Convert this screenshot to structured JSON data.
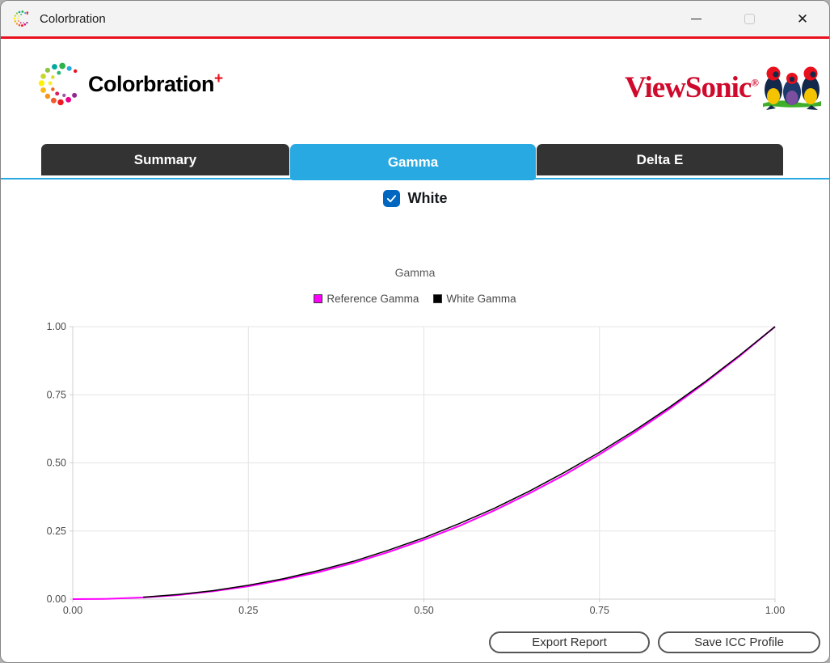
{
  "window": {
    "title": "Colorbration",
    "controls": {
      "minimize_icon": "minimize-icon",
      "maximize_icon": "maximize-icon",
      "close_icon": "close-icon",
      "close_glyph": "✕"
    }
  },
  "branding": {
    "app_logo_text": "Colorbration",
    "app_logo_plus": "+",
    "vendor_logo_text": "ViewSonic",
    "vendor_logo_reg": "®"
  },
  "tabs": [
    {
      "label": "Summary",
      "active": false
    },
    {
      "label": "Gamma",
      "active": true
    },
    {
      "label": "Delta E",
      "active": false
    }
  ],
  "white_checkbox": {
    "label": "White",
    "checked": true
  },
  "footer": {
    "export_report_label": "Export Report",
    "save_icc_label": "Save ICC Profile"
  },
  "colors": {
    "red_line": "#e8101c",
    "brand_red": "#cf0a2c",
    "tab_active": "#29a9e1",
    "tab_inactive": "#333333",
    "checkbox_blue": "#0067c0",
    "grid": "#e4e4e4",
    "axis": "#cfcfcf"
  },
  "chart_data": {
    "type": "line",
    "title": "Gamma",
    "xlabel": "",
    "ylabel": "",
    "xlim": [
      0,
      1
    ],
    "ylim": [
      0,
      1
    ],
    "grid": true,
    "legend_position": "top",
    "xticks": [
      "0.00",
      "0.25",
      "0.50",
      "0.75",
      "1.00"
    ],
    "yticks": [
      "0.00",
      "0.25",
      "0.50",
      "0.75",
      "1.00"
    ],
    "x": [
      0,
      0.05,
      0.1,
      0.15,
      0.2,
      0.25,
      0.3,
      0.35,
      0.4,
      0.45,
      0.5,
      0.55,
      0.6,
      0.65,
      0.7,
      0.75,
      0.8,
      0.85,
      0.9,
      0.95,
      1.0
    ],
    "series": [
      {
        "name": "Reference Gamma",
        "color": "#ff00ff",
        "width": 2,
        "values": [
          0,
          0.001,
          0.006,
          0.015,
          0.029,
          0.047,
          0.071,
          0.099,
          0.133,
          0.173,
          0.218,
          0.268,
          0.325,
          0.388,
          0.456,
          0.531,
          0.612,
          0.699,
          0.793,
          0.893,
          1.0
        ]
      },
      {
        "name": "White Gamma",
        "color": "#000000",
        "width": 1.5,
        "values": [
          null,
          null,
          0.007,
          0.017,
          0.031,
          0.051,
          0.075,
          0.105,
          0.139,
          0.18,
          0.225,
          0.277,
          0.333,
          0.396,
          0.465,
          0.539,
          0.619,
          0.705,
          0.797,
          0.896,
          1.0
        ]
      }
    ]
  }
}
